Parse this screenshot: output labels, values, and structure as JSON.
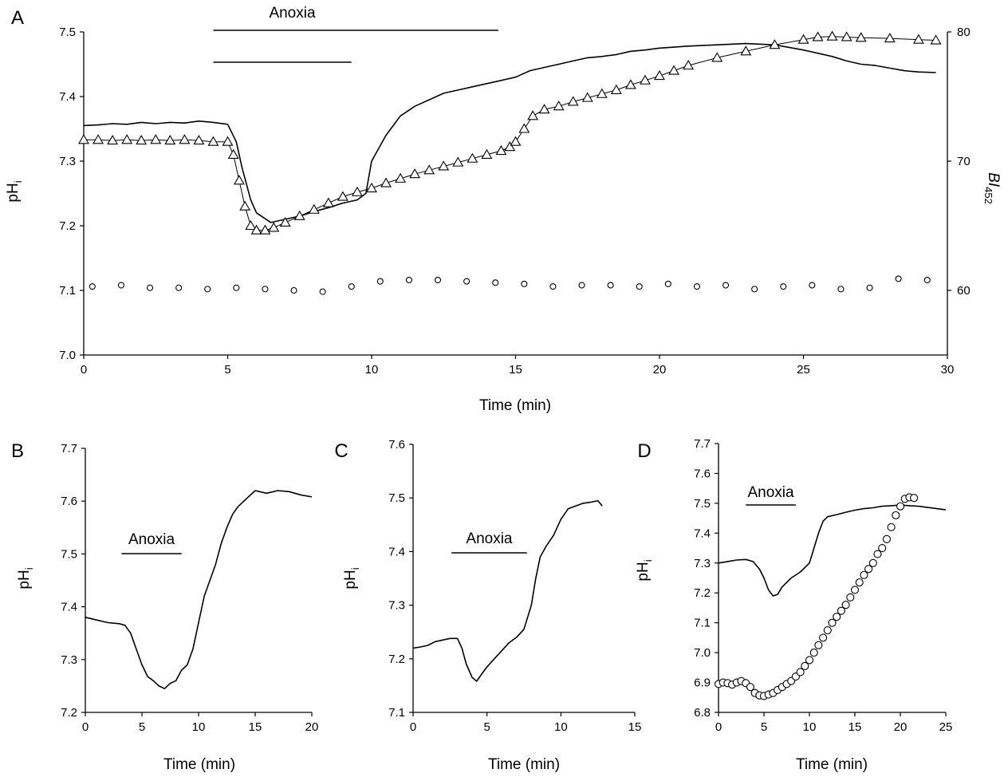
{
  "colors": {
    "ink": "#000000",
    "background": "#ffffff"
  },
  "chart_data": [
    {
      "panel_label": "A",
      "type": "line",
      "xlabel": "Time (min)",
      "ylabel_main": "pH",
      "ylabel_sub": "i",
      "y2label_main": "BI",
      "y2label_sub": "452",
      "xlim": [
        0,
        30
      ],
      "ylim": [
        7.0,
        7.5
      ],
      "y2lim": [
        55,
        80
      ],
      "xticks": [
        "0",
        "5",
        "10",
        "15",
        "20",
        "25",
        "30"
      ],
      "xtick_values": [
        0,
        5,
        10,
        15,
        20,
        25,
        30
      ],
      "yticks": [
        "7.0",
        "7.1",
        "7.2",
        "7.3",
        "7.4",
        "7.5"
      ],
      "ytick_values": [
        7.0,
        7.1,
        7.2,
        7.3,
        7.4,
        7.5
      ],
      "y2ticks": [
        "60",
        "70",
        "80"
      ],
      "y2tick_values": [
        60,
        70,
        80
      ],
      "annotations": [
        {
          "text": "Anoxia",
          "bar_start": 4.5,
          "bar_end": 14.4
        },
        {
          "text": "",
          "bar_start": 4.5,
          "bar_end": 9.3
        }
      ],
      "grid": false,
      "legend": "none",
      "series": [
        {
          "style": "line",
          "axis": "left",
          "x": [
            0,
            0.5,
            1,
            1.5,
            2,
            2.5,
            3,
            3.5,
            4,
            4.5,
            5,
            5.3,
            5.5,
            5.8,
            6,
            6.5,
            7,
            7.5,
            8,
            8.5,
            9,
            9.5,
            9.8,
            10,
            10.5,
            11,
            11.5,
            12,
            12.5,
            13,
            13.5,
            14,
            14.5,
            15,
            15.5,
            16,
            16.5,
            17,
            17.5,
            18,
            18.5,
            19,
            19.5,
            20,
            21,
            22,
            23,
            24,
            25,
            26,
            26.5,
            27,
            27.5,
            28,
            28.5,
            29,
            29.6
          ],
          "y": [
            7.355,
            7.356,
            7.358,
            7.357,
            7.36,
            7.358,
            7.36,
            7.359,
            7.362,
            7.36,
            7.357,
            7.33,
            7.29,
            7.24,
            7.22,
            7.205,
            7.21,
            7.215,
            7.222,
            7.228,
            7.235,
            7.24,
            7.25,
            7.3,
            7.34,
            7.37,
            7.385,
            7.395,
            7.405,
            7.41,
            7.415,
            7.42,
            7.425,
            7.43,
            7.44,
            7.445,
            7.45,
            7.455,
            7.46,
            7.462,
            7.465,
            7.47,
            7.472,
            7.475,
            7.478,
            7.48,
            7.482,
            7.48,
            7.472,
            7.462,
            7.455,
            7.45,
            7.448,
            7.444,
            7.44,
            7.438,
            7.437
          ]
        },
        {
          "style": "triangle",
          "axis": "left",
          "x": [
            0,
            0.5,
            1,
            1.5,
            2,
            2.5,
            3,
            3.5,
            4,
            4.5,
            5,
            5.2,
            5.4,
            5.6,
            5.8,
            6,
            6.3,
            6.6,
            7,
            7.5,
            8,
            8.5,
            9,
            9.5,
            10,
            10.5,
            11,
            11.5,
            12,
            12.5,
            13,
            13.5,
            14,
            14.5,
            14.8,
            15,
            15.3,
            15.6,
            16,
            16.5,
            17,
            17.5,
            18,
            18.5,
            19,
            19.5,
            20,
            20.5,
            21,
            22,
            23,
            24,
            25,
            25.5,
            26,
            26.5,
            27,
            28,
            29,
            29.6
          ],
          "y": [
            7.333,
            7.333,
            7.332,
            7.333,
            7.332,
            7.333,
            7.332,
            7.333,
            7.332,
            7.33,
            7.33,
            7.31,
            7.27,
            7.23,
            7.2,
            7.193,
            7.193,
            7.197,
            7.205,
            7.215,
            7.225,
            7.235,
            7.245,
            7.252,
            7.258,
            7.266,
            7.273,
            7.28,
            7.286,
            7.292,
            7.298,
            7.304,
            7.31,
            7.316,
            7.322,
            7.33,
            7.35,
            7.37,
            7.38,
            7.385,
            7.392,
            7.398,
            7.404,
            7.41,
            7.418,
            7.425,
            7.432,
            7.44,
            7.448,
            7.46,
            7.47,
            7.48,
            7.488,
            7.492,
            7.493,
            7.492,
            7.491,
            7.49,
            7.488,
            7.487
          ]
        },
        {
          "style": "circle",
          "axis": "right",
          "x": [
            0.3,
            1.3,
            2.3,
            3.3,
            4.3,
            5.3,
            6.3,
            7.3,
            8.3,
            9.3,
            10.3,
            11.3,
            12.3,
            13.3,
            14.3,
            15.3,
            16.3,
            17.3,
            18.3,
            19.3,
            20.3,
            21.3,
            22.3,
            23.3,
            24.3,
            25.3,
            26.3,
            27.3,
            28.3,
            29.3
          ],
          "y": [
            60.3,
            60.4,
            60.2,
            60.2,
            60.1,
            60.2,
            60.1,
            60.0,
            59.9,
            60.3,
            60.7,
            60.8,
            60.8,
            60.7,
            60.6,
            60.5,
            60.3,
            60.4,
            60.4,
            60.3,
            60.5,
            60.3,
            60.4,
            60.1,
            60.3,
            60.4,
            60.1,
            60.2,
            60.9,
            60.8
          ]
        }
      ]
    },
    {
      "panel_label": "B",
      "type": "line",
      "xlabel": "Time (min)",
      "ylabel_main": "pH",
      "ylabel_sub": "i",
      "xlim": [
        0,
        20
      ],
      "ylim": [
        7.2,
        7.7
      ],
      "xticks": [
        "0",
        "5",
        "10",
        "15",
        "20"
      ],
      "xtick_values": [
        0,
        5,
        10,
        15,
        20
      ],
      "yticks": [
        "7.2",
        "7.3",
        "7.4",
        "7.5",
        "7.6",
        "7.7"
      ],
      "ytick_values": [
        7.2,
        7.3,
        7.4,
        7.5,
        7.6,
        7.7
      ],
      "annotations": [
        {
          "text": "Anoxia",
          "bar_start": 3.2,
          "bar_end": 8.5
        }
      ],
      "grid": false,
      "legend": "none",
      "series": [
        {
          "style": "line",
          "x": [
            0,
            1,
            2,
            3,
            3.5,
            4,
            4.5,
            5,
            5.5,
            6,
            6.5,
            7,
            7.5,
            8,
            8.5,
            9,
            9.5,
            10,
            10.5,
            11,
            11.5,
            12,
            12.5,
            13,
            13.5,
            14,
            14.5,
            15,
            16,
            17,
            18,
            19,
            20
          ],
          "y": [
            7.38,
            7.375,
            7.37,
            7.368,
            7.365,
            7.35,
            7.32,
            7.29,
            7.268,
            7.26,
            7.25,
            7.245,
            7.255,
            7.26,
            7.28,
            7.29,
            7.32,
            7.37,
            7.42,
            7.45,
            7.48,
            7.52,
            7.55,
            7.575,
            7.59,
            7.6,
            7.61,
            7.62,
            7.615,
            7.62,
            7.618,
            7.612,
            7.608
          ]
        }
      ]
    },
    {
      "panel_label": "C",
      "type": "line",
      "xlabel": "Time (min)",
      "ylabel_main": "pH",
      "ylabel_sub": "i",
      "xlim": [
        0,
        15
      ],
      "ylim": [
        7.1,
        7.6
      ],
      "xticks": [
        "0",
        "5",
        "10",
        "15"
      ],
      "xtick_values": [
        0,
        5,
        10,
        15
      ],
      "yticks": [
        "7.1",
        "7.2",
        "7.3",
        "7.4",
        "7.5",
        "7.6"
      ],
      "ytick_values": [
        7.1,
        7.2,
        7.3,
        7.4,
        7.5,
        7.6
      ],
      "annotations": [
        {
          "text": "Anoxia",
          "bar_start": 2.6,
          "bar_end": 7.7
        }
      ],
      "grid": false,
      "legend": "none",
      "series": [
        {
          "style": "line",
          "x": [
            0,
            0.5,
            1,
            1.5,
            2,
            2.5,
            3,
            3.3,
            3.6,
            4,
            4.3,
            4.6,
            5,
            5.5,
            6,
            6.5,
            7,
            7.5,
            8,
            8.3,
            8.6,
            9,
            9.5,
            10,
            10.5,
            11,
            11.5,
            12,
            12.5,
            12.8
          ],
          "y": [
            7.22,
            7.222,
            7.225,
            7.232,
            7.235,
            7.238,
            7.238,
            7.22,
            7.19,
            7.165,
            7.158,
            7.17,
            7.185,
            7.2,
            7.215,
            7.23,
            7.24,
            7.255,
            7.3,
            7.35,
            7.39,
            7.41,
            7.43,
            7.46,
            7.48,
            7.485,
            7.49,
            7.492,
            7.495,
            7.485
          ]
        }
      ]
    },
    {
      "panel_label": "D",
      "type": "line",
      "xlabel": "Time (min)",
      "ylabel_main": "pH",
      "ylabel_sub": "i",
      "xlim": [
        0,
        25
      ],
      "ylim": [
        6.8,
        7.7
      ],
      "xticks": [
        "0",
        "5",
        "10",
        "15",
        "20",
        "25"
      ],
      "xtick_values": [
        0,
        5,
        10,
        15,
        20,
        25
      ],
      "yticks": [
        "6.8",
        "6.9",
        "7.0",
        "7.1",
        "7.2",
        "7.3",
        "7.4",
        "7.5",
        "7.6",
        "7.7"
      ],
      "ytick_values": [
        6.8,
        6.9,
        7.0,
        7.1,
        7.2,
        7.3,
        7.4,
        7.5,
        7.6,
        7.7
      ],
      "annotations": [
        {
          "text": "Anoxia",
          "bar_start": 3.0,
          "bar_end": 8.5
        }
      ],
      "grid": false,
      "legend": "none",
      "series": [
        {
          "style": "line",
          "x": [
            0,
            1,
            2,
            3,
            3.8,
            4.5,
            5,
            5.5,
            6,
            6.5,
            7,
            8,
            9,
            10,
            10.5,
            11,
            11.5,
            12,
            13,
            14,
            15,
            16,
            17,
            18,
            19,
            20,
            21,
            22,
            23,
            24,
            25
          ],
          "y": [
            7.3,
            7.305,
            7.31,
            7.312,
            7.305,
            7.28,
            7.25,
            7.21,
            7.19,
            7.195,
            7.22,
            7.25,
            7.27,
            7.3,
            7.35,
            7.4,
            7.44,
            7.455,
            7.462,
            7.47,
            7.477,
            7.482,
            7.485,
            7.49,
            7.492,
            7.494,
            7.492,
            7.49,
            7.486,
            7.482,
            7.478
          ]
        },
        {
          "style": "circle",
          "x": [
            0,
            0.5,
            1,
            1.5,
            2,
            2.5,
            3,
            3.5,
            4,
            4.5,
            5,
            5.5,
            6,
            6.5,
            7,
            7.5,
            8,
            8.5,
            9,
            9.5,
            10,
            10.5,
            11,
            11.5,
            12,
            12.5,
            13,
            13.5,
            14,
            14.5,
            15,
            15.5,
            16,
            16.5,
            17,
            17.5,
            18,
            18.5,
            19,
            19.5,
            20,
            20.5,
            21,
            21.5
          ],
          "y": [
            6.895,
            6.9,
            6.898,
            6.893,
            6.9,
            6.905,
            6.898,
            6.885,
            6.865,
            6.857,
            6.855,
            6.86,
            6.865,
            6.875,
            6.885,
            6.895,
            6.905,
            6.92,
            6.935,
            6.955,
            6.975,
            7.0,
            7.025,
            7.05,
            7.075,
            7.1,
            7.12,
            7.14,
            7.16,
            7.185,
            7.21,
            7.235,
            7.26,
            7.28,
            7.3,
            7.33,
            7.35,
            7.38,
            7.42,
            7.46,
            7.49,
            7.515,
            7.52,
            7.518
          ]
        }
      ]
    }
  ]
}
